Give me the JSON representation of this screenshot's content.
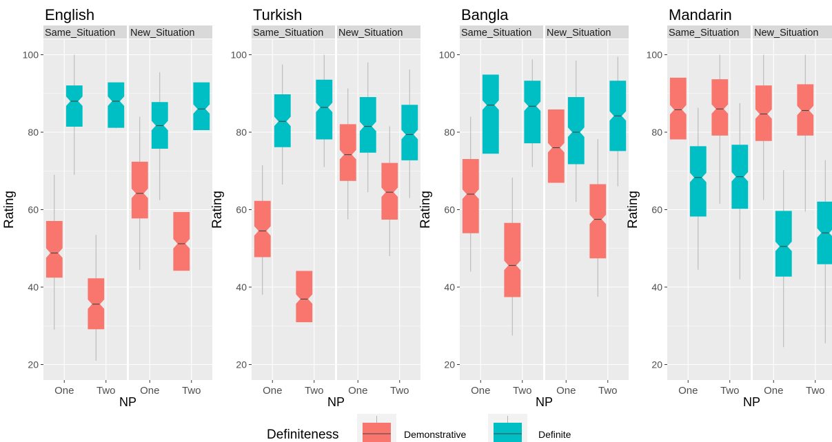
{
  "chart_data": {
    "type": "boxplot",
    "legend": {
      "title": "Definiteness",
      "entries": [
        {
          "label": "Demonstrative",
          "color": "#F8766D"
        },
        {
          "label": "Definite",
          "color": "#00BFC4"
        }
      ],
      "position": "bottom"
    },
    "panels": [
      {
        "title": "English",
        "xlabel": "NP",
        "ylabel": "Rating",
        "ylim": [
          16,
          104
        ],
        "yticks": [
          20,
          40,
          60,
          80,
          100
        ],
        "facets": [
          {
            "label": "Same_Situation",
            "categories": [
              "One",
              "Two"
            ],
            "boxes": [
              {
                "np": "One",
                "group": "Demonstrative",
                "whisker_low": 29,
                "q1": 42.5,
                "median": 48.8,
                "q3": 57,
                "whisker_high": 69
              },
              {
                "np": "One",
                "group": "Definite",
                "whisker_low": 69,
                "q1": 81.5,
                "median": 88,
                "q3": 92,
                "whisker_high": 100
              },
              {
                "np": "Two",
                "group": "Demonstrative",
                "whisker_low": 21,
                "q1": 29.2,
                "median": 35.6,
                "q3": 42.2,
                "whisker_high": 53.5
              },
              {
                "np": "Two",
                "group": "Definite",
                "whisker_low": 81,
                "q1": 81.2,
                "median": 88,
                "q3": 92.8,
                "whisker_high": 92.8
              }
            ]
          },
          {
            "label": "New_Situation",
            "categories": [
              "One",
              "Two"
            ],
            "boxes": [
              {
                "np": "One",
                "group": "Demonstrative",
                "whisker_low": 44.5,
                "q1": 57.8,
                "median": 64.2,
                "q3": 72.3,
                "whisker_high": 84
              },
              {
                "np": "One",
                "group": "Definite",
                "whisker_low": 62.5,
                "q1": 75.8,
                "median": 81.7,
                "q3": 87.7,
                "whisker_high": 95.5
              },
              {
                "np": "Two",
                "group": "Demonstrative",
                "whisker_low": 44.3,
                "q1": 44.3,
                "median": 51.2,
                "q3": 59.3,
                "whisker_high": 59.3
              },
              {
                "np": "Two",
                "group": "Definite",
                "whisker_low": 80.5,
                "q1": 80.6,
                "median": 86,
                "q3": 92.8,
                "whisker_high": 92.8
              }
            ]
          }
        ]
      },
      {
        "title": "Turkish",
        "xlabel": "NP",
        "ylabel": "Rating",
        "ylim": [
          16,
          104
        ],
        "yticks": [
          20,
          40,
          60,
          80,
          100
        ],
        "facets": [
          {
            "label": "Same_Situation",
            "categories": [
              "One",
              "Two"
            ],
            "boxes": [
              {
                "np": "One",
                "group": "Demonstrative",
                "whisker_low": 38,
                "q1": 47.8,
                "median": 54.5,
                "q3": 62.2,
                "whisker_high": 71.5
              },
              {
                "np": "One",
                "group": "Definite",
                "whisker_low": 66.5,
                "q1": 76.2,
                "median": 82.8,
                "q3": 89.7,
                "whisker_high": 97.5
              },
              {
                "np": "Two",
                "group": "Demonstrative",
                "whisker_low": 31,
                "q1": 31,
                "median": 36.9,
                "q3": 44.1,
                "whisker_high": 44.1
              },
              {
                "np": "Two",
                "group": "Definite",
                "whisker_low": 71,
                "q1": 78.2,
                "median": 86.4,
                "q3": 93.5,
                "whisker_high": 100
              }
            ]
          },
          {
            "label": "New_Situation",
            "categories": [
              "One",
              "Two"
            ],
            "boxes": [
              {
                "np": "One",
                "group": "Demonstrative",
                "whisker_low": 57.5,
                "q1": 67.5,
                "median": 74.2,
                "q3": 82,
                "whisker_high": 91.3
              },
              {
                "np": "One",
                "group": "Definite",
                "whisker_low": 64.5,
                "q1": 74.8,
                "median": 81.5,
                "q3": 89,
                "whisker_high": 98
              },
              {
                "np": "Two",
                "group": "Demonstrative",
                "whisker_low": 48,
                "q1": 57.5,
                "median": 64.5,
                "q3": 72,
                "whisker_high": 81.5
              },
              {
                "np": "Two",
                "group": "Definite",
                "whisker_low": 63,
                "q1": 72.8,
                "median": 79.4,
                "q3": 87,
                "whisker_high": 96.2
              }
            ]
          }
        ]
      },
      {
        "title": "Bangla",
        "xlabel": "NP",
        "ylabel": "Rating",
        "ylim": [
          16,
          104
        ],
        "yticks": [
          20,
          40,
          60,
          80,
          100
        ],
        "facets": [
          {
            "label": "Same_Situation",
            "categories": [
              "One",
              "Two"
            ],
            "boxes": [
              {
                "np": "One",
                "group": "Demonstrative",
                "whisker_low": 44,
                "q1": 54,
                "median": 64,
                "q3": 73,
                "whisker_high": 84
              },
              {
                "np": "One",
                "group": "Definite",
                "whisker_low": 74.5,
                "q1": 74.5,
                "median": 87,
                "q3": 94.8,
                "whisker_high": 94.8
              },
              {
                "np": "Two",
                "group": "Demonstrative",
                "whisker_low": 27.5,
                "q1": 37.5,
                "median": 45.6,
                "q3": 56.5,
                "whisker_high": 68.3
              },
              {
                "np": "Two",
                "group": "Definite",
                "whisker_low": 71,
                "q1": 77.2,
                "median": 86.7,
                "q3": 93.2,
                "whisker_high": 98.8
              }
            ]
          },
          {
            "label": "New_Situation",
            "categories": [
              "One",
              "Two"
            ],
            "boxes": [
              {
                "np": "One",
                "group": "Demonstrative",
                "whisker_low": 67,
                "q1": 67,
                "median": 76,
                "q3": 85.8,
                "whisker_high": 85.8
              },
              {
                "np": "One",
                "group": "Definite",
                "whisker_low": 62,
                "q1": 71.8,
                "median": 80,
                "q3": 89,
                "whisker_high": 98.5
              },
              {
                "np": "Two",
                "group": "Demonstrative",
                "whisker_low": 37.5,
                "q1": 47.5,
                "median": 57.5,
                "q3": 66.5,
                "whisker_high": 78.2
              },
              {
                "np": "Two",
                "group": "Definite",
                "whisker_low": 66,
                "q1": 75.2,
                "median": 84.2,
                "q3": 93.2,
                "whisker_high": 99.5
              }
            ]
          }
        ]
      },
      {
        "title": "Mandarin",
        "xlabel": "NP",
        "ylabel": "Rating",
        "ylim": [
          16,
          104
        ],
        "yticks": [
          20,
          40,
          60,
          80,
          100
        ],
        "facets": [
          {
            "label": "Same_Situation",
            "categories": [
              "One",
              "Two"
            ],
            "boxes": [
              {
                "np": "One",
                "group": "Demonstrative",
                "whisker_low": 78.2,
                "q1": 78.2,
                "median": 85.8,
                "q3": 94,
                "whisker_high": 94
              },
              {
                "np": "One",
                "group": "Definite",
                "whisker_low": 44.5,
                "q1": 58.3,
                "median": 68.3,
                "q3": 76.3,
                "whisker_high": 86.3
              },
              {
                "np": "Two",
                "group": "Demonstrative",
                "whisker_low": 61.5,
                "q1": 79.2,
                "median": 86,
                "q3": 93.6,
                "whisker_high": 100
              },
              {
                "np": "Two",
                "group": "Definite",
                "whisker_low": 42,
                "q1": 60.3,
                "median": 68.5,
                "q3": 76.7,
                "whisker_high": 87.5
              }
            ]
          },
          {
            "label": "New_Situation",
            "categories": [
              "One",
              "Two"
            ],
            "boxes": [
              {
                "np": "One",
                "group": "Demonstrative",
                "whisker_low": 62.5,
                "q1": 77.8,
                "median": 84.7,
                "q3": 92,
                "whisker_high": 100
              },
              {
                "np": "One",
                "group": "Definite",
                "whisker_low": 24.5,
                "q1": 42.8,
                "median": 50.5,
                "q3": 59.6,
                "whisker_high": 70.2
              },
              {
                "np": "Two",
                "group": "Demonstrative",
                "whisker_low": 59.5,
                "q1": 79.2,
                "median": 85.6,
                "q3": 92.3,
                "whisker_high": 100
              },
              {
                "np": "Two",
                "group": "Definite",
                "whisker_low": 25.5,
                "q1": 46,
                "median": 54,
                "q3": 62,
                "whisker_high": 72.8
              }
            ]
          }
        ]
      }
    ]
  }
}
